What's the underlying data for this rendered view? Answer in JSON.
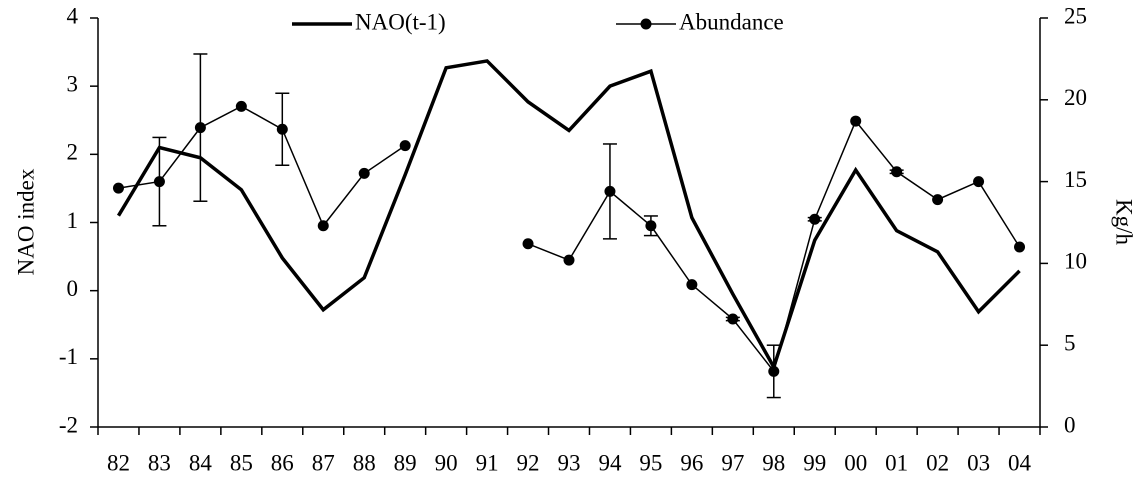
{
  "chart_data": {
    "type": "line",
    "y_label": "NAO index",
    "y2_label": "Kg/h",
    "categories": [
      "82",
      "83",
      "84",
      "85",
      "86",
      "87",
      "88",
      "89",
      "90",
      "91",
      "92",
      "93",
      "94",
      "95",
      "96",
      "97",
      "98",
      "99",
      "00",
      "01",
      "02",
      "03",
      "04"
    ],
    "series": [
      {
        "name": "NAO(t-1)",
        "color": "#000000",
        "axis": "y",
        "values": [
          1.1,
          2.1,
          1.95,
          1.48,
          0.48,
          -0.28,
          0.19,
          1.7,
          3.27,
          3.37,
          2.77,
          2.35,
          3.0,
          3.22,
          1.07,
          -0.05,
          -1.12,
          0.74,
          1.77,
          0.88,
          0.57,
          -0.31,
          0.29
        ]
      },
      {
        "name": "Abundance",
        "color": "#000000",
        "axis": "y2",
        "marker": "circle",
        "values": [
          14.6,
          15.0,
          18.3,
          19.6,
          18.2,
          12.3,
          15.5,
          17.2,
          null,
          null,
          11.2,
          10.2,
          14.4,
          12.3,
          8.7,
          6.6,
          3.4,
          12.7,
          18.7,
          15.6,
          13.9,
          15.0,
          11.0
        ],
        "errors": [
          null,
          2.7,
          4.5,
          null,
          2.2,
          null,
          null,
          null,
          null,
          null,
          null,
          null,
          2.9,
          0.6,
          null,
          0.1,
          1.6,
          0.1,
          null,
          0.1,
          null,
          null,
          null
        ]
      }
    ],
    "ylim": [
      -2,
      4
    ],
    "yticks": [
      -2,
      -1,
      0,
      1,
      2,
      3,
      4
    ],
    "y2lim": [
      0,
      25
    ],
    "y2ticks": [
      0,
      5,
      10,
      15,
      20,
      25
    ],
    "grid": false,
    "legend": "top"
  }
}
